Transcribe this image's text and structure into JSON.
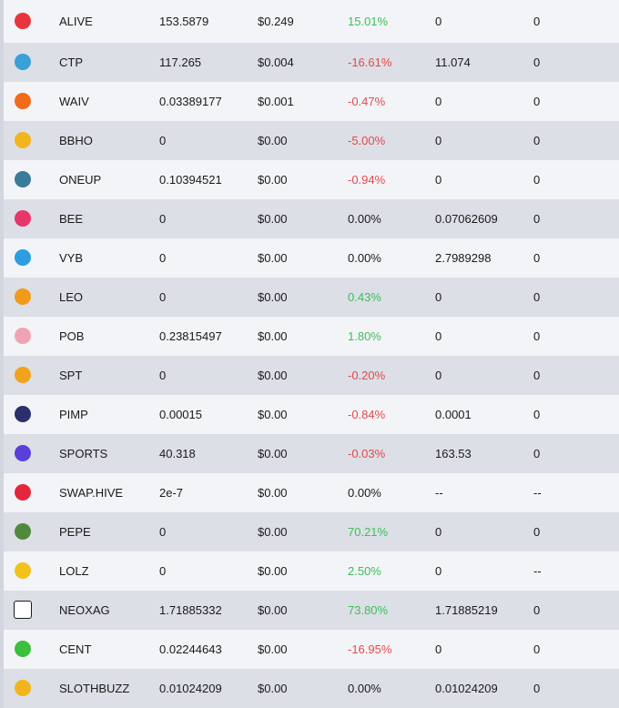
{
  "rows": [
    {
      "icon": "alive-heart-icon",
      "color": "#e8353b",
      "symbol": "ALIVE",
      "balance": "153.5879",
      "price": "$0.249",
      "change": "15.01%",
      "trend": "pos",
      "stake": "0",
      "delegated": "0"
    },
    {
      "icon": "ctp-icon",
      "color": "#3aa0d8",
      "symbol": "CTP",
      "balance": "117.265",
      "price": "$0.004",
      "change": "-16.61%",
      "trend": "neg",
      "stake": "11.074",
      "delegated": "0"
    },
    {
      "icon": "waiv-icon",
      "color": "#f26a1b",
      "symbol": "WAIV",
      "balance": "0.03389177",
      "price": "$0.001",
      "change": "-0.47%",
      "trend": "neg",
      "stake": "0",
      "delegated": "0"
    },
    {
      "icon": "bbho-icon",
      "color": "#f2b51b",
      "symbol": "BBHO",
      "balance": "0",
      "price": "$0.00",
      "change": "-5.00%",
      "trend": "neg",
      "stake": "0",
      "delegated": "0"
    },
    {
      "icon": "oneup-icon",
      "color": "#3b7a99",
      "symbol": "ONEUP",
      "balance": "0.10394521",
      "price": "$0.00",
      "change": "-0.94%",
      "trend": "neg",
      "stake": "0",
      "delegated": "0"
    },
    {
      "icon": "bee-icon",
      "color": "#e8356b",
      "symbol": "BEE",
      "balance": "0",
      "price": "$0.00",
      "change": "0.00%",
      "trend": "neu",
      "stake": "0.07062609",
      "delegated": "0"
    },
    {
      "icon": "vyb-icon",
      "color": "#2b9de0",
      "symbol": "VYB",
      "balance": "0",
      "price": "$0.00",
      "change": "0.00%",
      "trend": "neu",
      "stake": "2.7989298",
      "delegated": "0"
    },
    {
      "icon": "leo-icon",
      "color": "#f29a1b",
      "symbol": "LEO",
      "balance": "0",
      "price": "$0.00",
      "change": "0.43%",
      "trend": "pos",
      "stake": "0",
      "delegated": "0"
    },
    {
      "icon": "pob-brain-icon",
      "color": "#f2a3b3",
      "symbol": "POB",
      "balance": "0.23815497",
      "price": "$0.00",
      "change": "1.80%",
      "trend": "pos",
      "stake": "0",
      "delegated": "0"
    },
    {
      "icon": "spt-icon",
      "color": "#f2a21b",
      "symbol": "SPT",
      "balance": "0",
      "price": "$0.00",
      "change": "-0.20%",
      "trend": "neg",
      "stake": "0",
      "delegated": "0"
    },
    {
      "icon": "pimp-icon",
      "color": "#2b2f6b",
      "symbol": "PIMP",
      "balance": "0.00015",
      "price": "$0.00",
      "change": "-0.84%",
      "trend": "neg",
      "stake": "0.0001",
      "delegated": "0"
    },
    {
      "icon": "sports-icon",
      "color": "#5a3fd8",
      "symbol": "SPORTS",
      "balance": "40.318",
      "price": "$0.00",
      "change": "-0.03%",
      "trend": "neg",
      "stake": "163.53",
      "delegated": "0"
    },
    {
      "icon": "swap-hive-icon",
      "color": "#e3263b",
      "symbol": "SWAP.HIVE",
      "balance": "2e-7",
      "price": "$0.00",
      "change": "0.00%",
      "trend": "neu",
      "stake": "--",
      "delegated": "--"
    },
    {
      "icon": "pepe-icon",
      "color": "#4f8a3c",
      "symbol": "PEPE",
      "balance": "0",
      "price": "$0.00",
      "change": "70.21%",
      "trend": "pos",
      "stake": "0",
      "delegated": "0"
    },
    {
      "icon": "lolz-icon",
      "color": "#f2c21b",
      "symbol": "LOLZ",
      "balance": "0",
      "price": "$0.00",
      "change": "2.50%",
      "trend": "pos",
      "stake": "0",
      "delegated": "--"
    },
    {
      "icon": "neoxag-dice-icon",
      "color": "#1a1a1a",
      "symbol": "NEOXAG",
      "balance": "1.71885332",
      "price": "$0.00",
      "change": "73.80%",
      "trend": "pos",
      "stake": "1.71885219",
      "delegated": "0"
    },
    {
      "icon": "cent-icon",
      "color": "#3cbf3c",
      "symbol": "CENT",
      "balance": "0.02244643",
      "price": "$0.00",
      "change": "-16.95%",
      "trend": "neg",
      "stake": "0",
      "delegated": "0"
    },
    {
      "icon": "slothbuzz-icon",
      "color": "#f2b51b",
      "symbol": "SLOTHBUZZ",
      "balance": "0.01024209",
      "price": "$0.00",
      "change": "0.00%",
      "trend": "neu",
      "stake": "0.01024209",
      "delegated": "0"
    }
  ]
}
